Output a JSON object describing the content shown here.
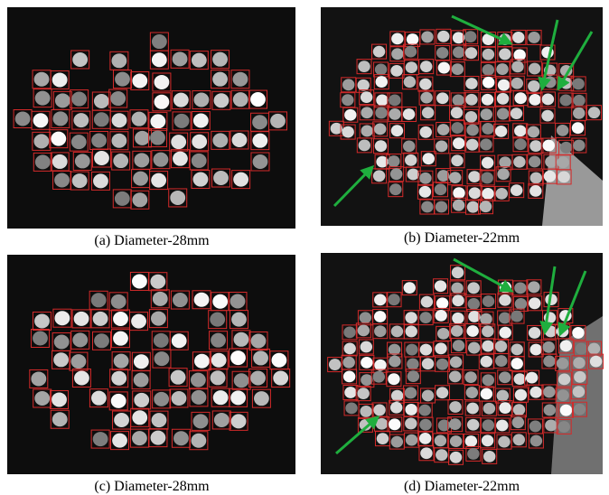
{
  "panels": [
    {
      "caption": "(a) Diameter-28mm"
    },
    {
      "caption": "(b) Diameter-22mm"
    },
    {
      "caption": "(c) Diameter-28mm"
    },
    {
      "caption": "(d) Diameter-22mm"
    }
  ]
}
